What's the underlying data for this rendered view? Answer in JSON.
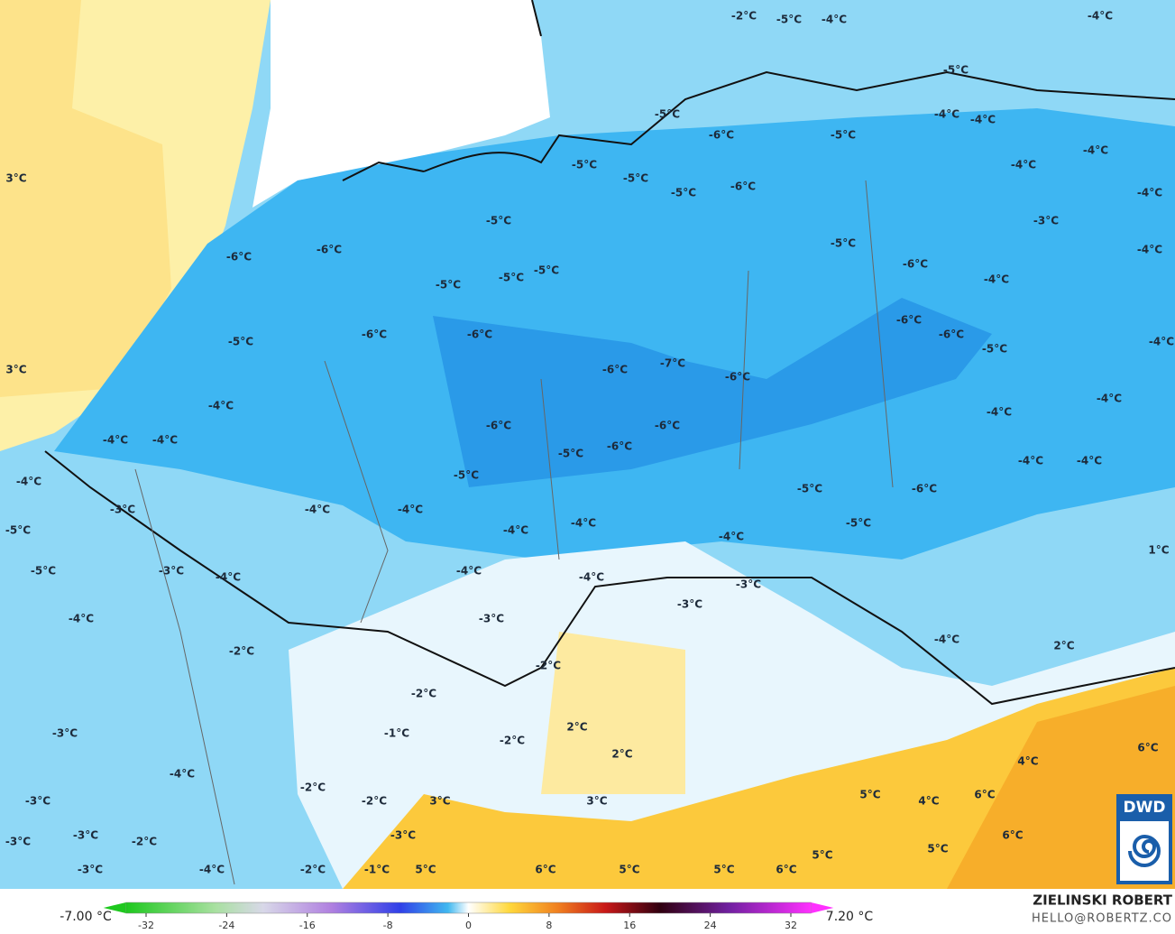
{
  "map": {
    "labels": [
      "-2°C",
      "-5°C",
      "-4°C",
      "-4°C",
      "-5°C",
      "3°C",
      "3°C",
      "-5°C",
      "-4°C",
      "-4°C",
      "-6°C",
      "-5°C",
      "-4°C",
      "-5°C",
      "-5°C",
      "-5°C",
      "-6°C",
      "-4°C",
      "-4°C",
      "-5°C",
      "-3°C",
      "-5°C",
      "-4°C",
      "-6°C",
      "-6°C",
      "-6°C",
      "-4°C",
      "-5°C",
      "-5°C",
      "-5°C",
      "-5°C",
      "-6°C",
      "-6°C",
      "-6°C",
      "-6°C",
      "-5°C",
      "-4°C",
      "-6°C",
      "-7°C",
      "-6°C",
      "-4°C",
      "-4°C",
      "-4°C",
      "-4°C",
      "-4°C",
      "-6°C",
      "-6°C",
      "-5°C",
      "-6°C",
      "-5°C",
      "-4°C",
      "-4°C",
      "-4°C",
      "-5°C",
      "-6°C",
      "-3°C",
      "-4°C",
      "-4°C",
      "-5°C",
      "-4°C",
      "-4°C",
      "-5°C",
      "-4°C",
      "-5°C",
      "-3°C",
      "-4°C",
      "-4°C",
      "-4°C",
      "-3°C",
      "1°C",
      "-3°C",
      "-3°C",
      "-4°C",
      "2°C",
      "-4°C",
      "-2°C",
      "-2°C",
      "-2°C",
      "-3°C",
      "-1°C",
      "-2°C",
      "2°C",
      "2°C",
      "6°C",
      "4°C",
      "-4°C",
      "-2°C",
      "-3°C",
      "-2°C",
      "3°C",
      "3°C",
      "5°C",
      "4°C",
      "6°C",
      "-3°C",
      "-2°C",
      "-3°C",
      "-3°C",
      "6°C",
      "5°C",
      "5°C",
      "-3°C",
      "-4°C",
      "-2°C",
      "-1°C",
      "5°C",
      "6°C",
      "5°C",
      "5°C",
      "6°C"
    ]
  },
  "legend": {
    "min_label": "-7.00 °C",
    "max_label": "7.20 °C",
    "lim": [
      -34,
      34
    ],
    "ticks": [
      -32,
      -24,
      -16,
      -8,
      0,
      8,
      16,
      24,
      32
    ]
  },
  "credit": {
    "name": "ZIELINSKI ROBERT",
    "email": "HELLO@ROBERTZ.CO"
  },
  "logo": "DWD"
}
